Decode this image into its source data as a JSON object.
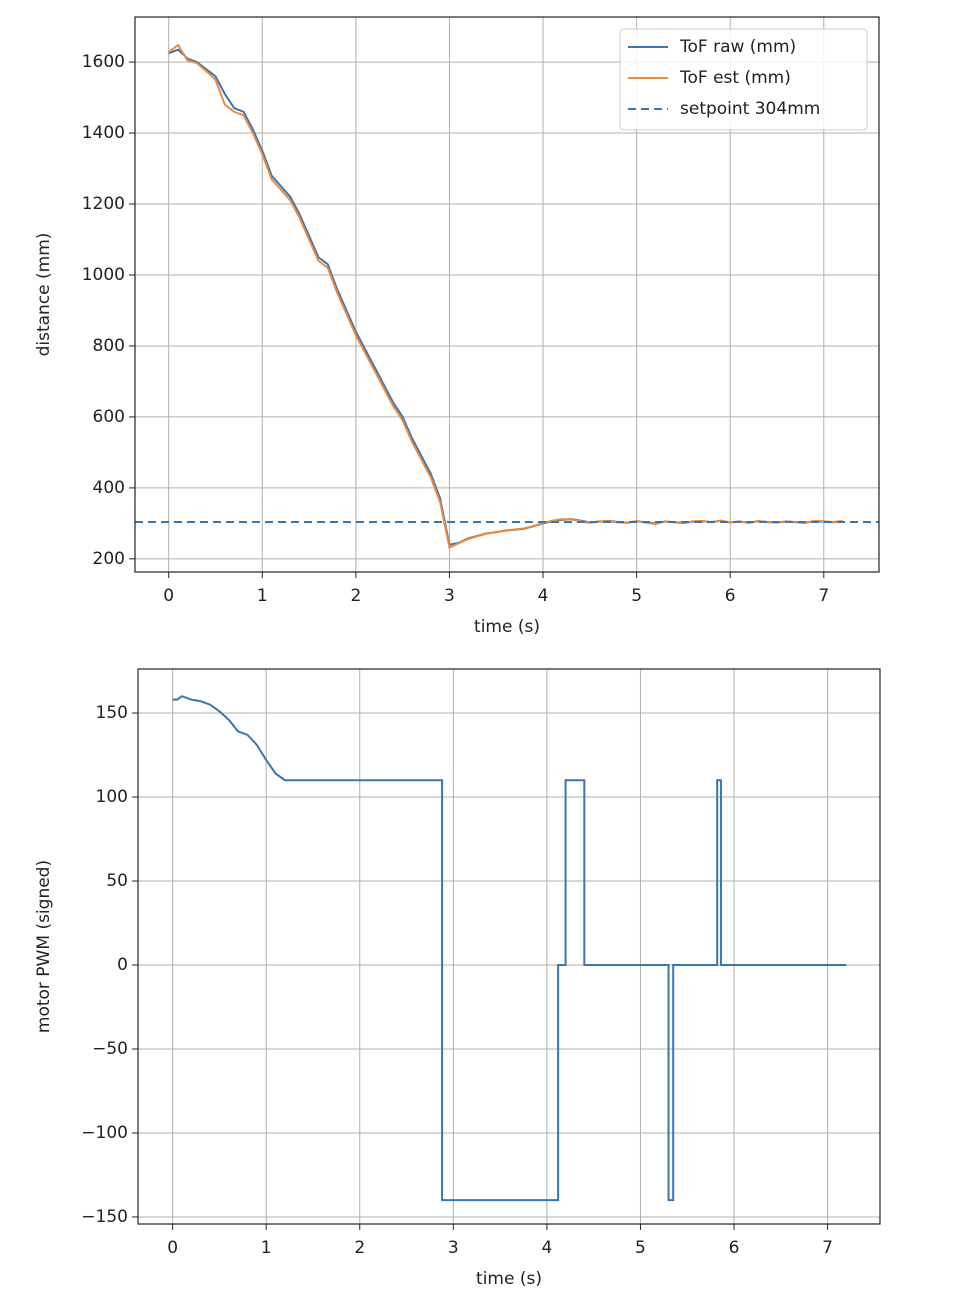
{
  "chart_data": [
    {
      "type": "line",
      "xlabel": "time (s)",
      "ylabel": "distance (mm)",
      "x": [
        0,
        0.1,
        0.2,
        0.3,
        0.4,
        0.5,
        0.6,
        0.7,
        0.8,
        0.9,
        1.0,
        1.1,
        1.2,
        1.3,
        1.4,
        1.5,
        1.6,
        1.7,
        1.8,
        1.9,
        2.0,
        2.1,
        2.2,
        2.3,
        2.4,
        2.5,
        2.6,
        2.7,
        2.8,
        2.9,
        3.0,
        3.1,
        3.2,
        3.3,
        3.4,
        3.5,
        3.6,
        3.7,
        3.8,
        3.9,
        4.0,
        4.1,
        4.2,
        4.3,
        4.4,
        4.5,
        4.6,
        4.7,
        4.8,
        4.9,
        5.0,
        5.1,
        5.2,
        5.3,
        5.4,
        5.5,
        5.6,
        5.7,
        5.8,
        5.9,
        6.0,
        6.1,
        6.2,
        6.3,
        6.4,
        6.5,
        6.6,
        6.7,
        6.8,
        6.9,
        7.0,
        7.1,
        7.2
      ],
      "series": [
        {
          "name": "ToF raw (mm)",
          "color": "#3a75b0",
          "values": [
            1625,
            1635,
            1610,
            1600,
            1580,
            1560,
            1510,
            1470,
            1460,
            1410,
            1350,
            1280,
            1250,
            1220,
            1170,
            1110,
            1050,
            1030,
            960,
            900,
            840,
            790,
            740,
            690,
            640,
            600,
            540,
            490,
            440,
            370,
            240,
            245,
            258,
            265,
            272,
            275,
            280,
            282,
            285,
            292,
            300,
            306,
            310,
            312,
            308,
            303,
            305,
            307,
            304,
            302,
            306,
            303,
            300,
            305,
            304,
            301,
            305,
            306,
            304,
            307,
            303,
            305,
            302,
            306,
            304,
            303,
            305,
            304,
            302,
            306,
            305,
            304,
            306
          ]
        },
        {
          "name": "ToF est (mm)",
          "color": "#ef8a3c",
          "values": [
            1628,
            1648,
            1605,
            1597,
            1575,
            1550,
            1480,
            1460,
            1450,
            1400,
            1340,
            1270,
            1240,
            1210,
            1160,
            1100,
            1040,
            1020,
            950,
            890,
            830,
            780,
            730,
            680,
            630,
            590,
            530,
            480,
            430,
            360,
            232,
            244,
            256,
            264,
            271,
            276,
            279,
            283,
            286,
            293,
            301,
            308,
            312,
            311,
            306,
            301,
            306,
            306,
            303,
            301,
            307,
            302,
            298,
            306,
            303,
            300,
            306,
            307,
            303,
            308,
            302,
            306,
            301,
            307,
            303,
            302,
            306,
            303,
            301,
            307,
            306,
            303,
            307
          ]
        }
      ],
      "hlines": [
        {
          "name": "setpoint 304mm",
          "value": 304,
          "color": "#3a75b0",
          "style": "dashed"
        }
      ],
      "xlim": [
        -0.36,
        7.59
      ],
      "ylim": [
        163,
        1727
      ],
      "xticks": [
        0,
        1,
        2,
        3,
        4,
        5,
        6,
        7
      ],
      "yticks": [
        200,
        400,
        600,
        800,
        1000,
        1200,
        1400,
        1600
      ],
      "grid": true,
      "legend": "upper right"
    },
    {
      "type": "line",
      "xlabel": "time (s)",
      "ylabel": "motor PWM (signed)",
      "x": [
        0,
        0.05,
        0.1,
        0.2,
        0.3,
        0.4,
        0.5,
        0.6,
        0.7,
        0.8,
        0.9,
        1.0,
        1.1,
        1.2,
        2.88,
        2.88,
        4.12,
        4.12,
        4.2,
        4.2,
        4.4,
        4.4,
        5.3,
        5.3,
        5.35,
        5.35,
        5.82,
        5.82,
        5.86,
        5.86,
        7.2
      ],
      "series": [
        {
          "color": "#3a75b0",
          "values": [
            158,
            158,
            160,
            158,
            157,
            155,
            151,
            146,
            139,
            137,
            131,
            122,
            114,
            110,
            110,
            -140,
            -140,
            0,
            0,
            110,
            110,
            0,
            0,
            -140,
            -140,
            0,
            0,
            110,
            110,
            0,
            0
          ]
        }
      ],
      "xlim": [
        -0.37,
        7.56
      ],
      "ylim": [
        -154.2,
        176.2
      ],
      "xticks": [
        0,
        1,
        2,
        3,
        4,
        5,
        6,
        7
      ],
      "yticks": [
        {
          "value": -150,
          "label": "−150"
        },
        {
          "value": -100,
          "label": "−100"
        },
        {
          "value": -50,
          "label": "−50"
        },
        0,
        50,
        100,
        150
      ],
      "grid": true
    }
  ]
}
